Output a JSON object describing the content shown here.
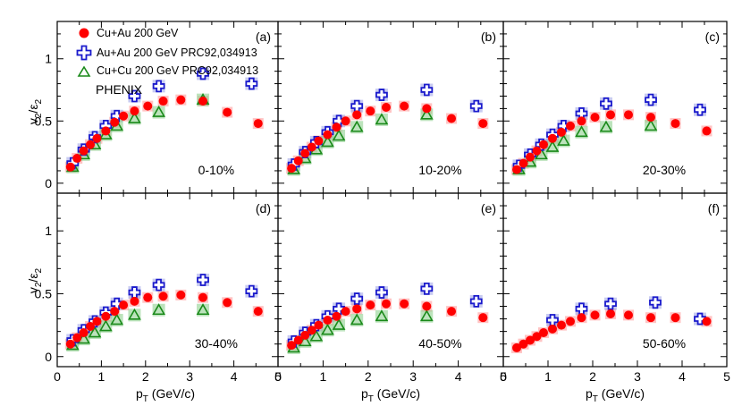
{
  "chart_data": {
    "type": "scatter",
    "title": "",
    "xlabel": "p_T (GeV/c)",
    "xlabel_main": "p",
    "xlabel_sub": "T",
    "xlabel_rest": " (GeV/c)",
    "ylabel": "v_2/ε_2",
    "ylabel_v": "v",
    "ylabel_sub1": "2",
    "ylabel_slash": "/ε",
    "ylabel_sub2": "2",
    "xlim": [
      0,
      5
    ],
    "ylim": [
      -0.08,
      1.3
    ],
    "xticks": [
      "0",
      "1",
      "2",
      "3",
      "4",
      "5"
    ],
    "yticks": [
      "0",
      "0.5",
      "1"
    ],
    "experiment_label": "PHENIX",
    "legend": [
      {
        "name": "Cu+Au 200 GeV",
        "marker": "filled-circle",
        "color": "#ff0000"
      },
      {
        "name": "Au+Au 200 GeV PRC92,034913",
        "marker": "open-cross",
        "color": "#1a1acc"
      },
      {
        "name": "Cu+Cu 200 GeV PRC92,034913",
        "marker": "open-triangle",
        "color": "#1a8a1a"
      }
    ],
    "panels": [
      {
        "letter": "(a)",
        "centrality": "0-10%",
        "series": [
          {
            "name": "Cu+Au 200 GeV",
            "x": [
              0.3,
              0.45,
              0.6,
              0.75,
              0.9,
              1.1,
              1.3,
              1.5,
              1.75,
              2.05,
              2.4,
              2.8,
              3.3,
              3.85,
              4.55
            ],
            "y": [
              0.13,
              0.2,
              0.26,
              0.31,
              0.36,
              0.42,
              0.49,
              0.54,
              0.58,
              0.62,
              0.66,
              0.67,
              0.66,
              0.57,
              0.48
            ]
          },
          {
            "name": "Au+Au 200 GeV PRC92,034913",
            "x": [
              0.35,
              0.6,
              0.85,
              1.1,
              1.35,
              1.75,
              2.3,
              3.3,
              4.4
            ],
            "y": [
              0.16,
              0.27,
              0.37,
              0.46,
              0.54,
              0.7,
              0.78,
              0.88,
              0.8
            ]
          },
          {
            "name": "Cu+Cu 200 GeV PRC92,034913",
            "x": [
              0.35,
              0.6,
              0.85,
              1.1,
              1.35,
              1.75,
              2.3,
              3.3
            ],
            "y": [
              0.13,
              0.23,
              0.31,
              0.39,
              0.46,
              0.52,
              0.57,
              0.67
            ]
          }
        ]
      },
      {
        "letter": "(b)",
        "centrality": "10-20%",
        "series": [
          {
            "name": "Cu+Au 200 GeV",
            "x": [
              0.3,
              0.45,
              0.6,
              0.75,
              0.9,
              1.1,
              1.3,
              1.5,
              1.75,
              2.05,
              2.4,
              2.8,
              3.3,
              3.85,
              4.55
            ],
            "y": [
              0.12,
              0.18,
              0.24,
              0.29,
              0.34,
              0.39,
              0.45,
              0.5,
              0.55,
              0.58,
              0.61,
              0.62,
              0.6,
              0.52,
              0.48
            ]
          },
          {
            "name": "Au+Au 200 GeV PRC92,034913",
            "x": [
              0.35,
              0.6,
              0.85,
              1.1,
              1.35,
              1.75,
              2.3,
              3.3,
              4.4
            ],
            "y": [
              0.15,
              0.25,
              0.33,
              0.41,
              0.5,
              0.62,
              0.71,
              0.75,
              0.62
            ]
          },
          {
            "name": "Cu+Cu 200 GeV PRC92,034913",
            "x": [
              0.35,
              0.6,
              0.85,
              1.1,
              1.35,
              1.75,
              2.3,
              3.3
            ],
            "y": [
              0.11,
              0.2,
              0.27,
              0.33,
              0.38,
              0.45,
              0.51,
              0.55
            ]
          }
        ]
      },
      {
        "letter": "(c)",
        "centrality": "20-30%",
        "series": [
          {
            "name": "Cu+Au 200 GeV",
            "x": [
              0.3,
              0.45,
              0.6,
              0.75,
              0.9,
              1.1,
              1.3,
              1.5,
              1.75,
              2.05,
              2.4,
              2.8,
              3.3,
              3.85,
              4.55
            ],
            "y": [
              0.11,
              0.16,
              0.21,
              0.26,
              0.31,
              0.36,
              0.41,
              0.46,
              0.5,
              0.53,
              0.55,
              0.55,
              0.53,
              0.48,
              0.42
            ]
          },
          {
            "name": "Au+Au 200 GeV PRC92,034913",
            "x": [
              0.35,
              0.6,
              0.85,
              1.1,
              1.35,
              1.75,
              2.3,
              3.3,
              4.4
            ],
            "y": [
              0.14,
              0.23,
              0.31,
              0.39,
              0.46,
              0.56,
              0.64,
              0.67,
              0.59
            ]
          },
          {
            "name": "Cu+Cu 200 GeV PRC92,034913",
            "x": [
              0.35,
              0.6,
              0.85,
              1.1,
              1.35,
              1.75,
              2.3,
              3.3
            ],
            "y": [
              0.11,
              0.17,
              0.23,
              0.29,
              0.34,
              0.41,
              0.45,
              0.46
            ]
          }
        ]
      },
      {
        "letter": "(d)",
        "centrality": "30-40%",
        "series": [
          {
            "name": "Cu+Au 200 GeV",
            "x": [
              0.3,
              0.45,
              0.6,
              0.75,
              0.9,
              1.1,
              1.3,
              1.5,
              1.75,
              2.05,
              2.4,
              2.8,
              3.3,
              3.85,
              4.55
            ],
            "y": [
              0.1,
              0.15,
              0.19,
              0.24,
              0.28,
              0.32,
              0.36,
              0.41,
              0.44,
              0.47,
              0.48,
              0.49,
              0.47,
              0.43,
              0.36
            ]
          },
          {
            "name": "Au+Au 200 GeV PRC92,034913",
            "x": [
              0.35,
              0.6,
              0.85,
              1.1,
              1.35,
              1.75,
              2.3,
              3.3,
              4.4
            ],
            "y": [
              0.13,
              0.21,
              0.28,
              0.35,
              0.42,
              0.51,
              0.57,
              0.61,
              0.52
            ]
          },
          {
            "name": "Cu+Cu 200 GeV PRC92,034913",
            "x": [
              0.35,
              0.6,
              0.85,
              1.1,
              1.35,
              1.75,
              2.3,
              3.3
            ],
            "y": [
              0.09,
              0.14,
              0.19,
              0.24,
              0.29,
              0.33,
              0.37,
              0.37
            ]
          }
        ]
      },
      {
        "letter": "(e)",
        "centrality": "40-50%",
        "series": [
          {
            "name": "Cu+Au 200 GeV",
            "x": [
              0.3,
              0.45,
              0.6,
              0.75,
              0.9,
              1.1,
              1.3,
              1.5,
              1.75,
              2.05,
              2.4,
              2.8,
              3.3,
              3.85,
              4.55
            ],
            "y": [
              0.09,
              0.13,
              0.17,
              0.21,
              0.25,
              0.29,
              0.32,
              0.36,
              0.38,
              0.41,
              0.42,
              0.42,
              0.4,
              0.36,
              0.31
            ]
          },
          {
            "name": "Au+Au 200 GeV PRC92,034913",
            "x": [
              0.35,
              0.6,
              0.85,
              1.1,
              1.35,
              1.75,
              2.3,
              3.3,
              4.4
            ],
            "y": [
              0.12,
              0.19,
              0.25,
              0.32,
              0.38,
              0.46,
              0.51,
              0.54,
              0.44
            ]
          },
          {
            "name": "Cu+Cu 200 GeV PRC92,034913",
            "x": [
              0.35,
              0.6,
              0.85,
              1.1,
              1.35,
              1.75,
              2.3,
              3.3
            ],
            "y": [
              0.07,
              0.12,
              0.16,
              0.21,
              0.25,
              0.29,
              0.32,
              0.32
            ]
          }
        ]
      },
      {
        "letter": "(f)",
        "centrality": "50-60%",
        "series": [
          {
            "name": "Cu+Au 200 GeV",
            "x": [
              0.3,
              0.45,
              0.6,
              0.75,
              0.9,
              1.1,
              1.3,
              1.5,
              1.75,
              2.05,
              2.4,
              2.8,
              3.3,
              3.85,
              4.55
            ],
            "y": [
              0.07,
              0.1,
              0.13,
              0.16,
              0.19,
              0.22,
              0.25,
              0.28,
              0.31,
              0.33,
              0.34,
              0.33,
              0.31,
              0.31,
              0.28
            ]
          },
          {
            "name": "Au+Au 200 GeV PRC92,034913",
            "x": [
              1.1,
              1.75,
              2.4,
              3.4,
              4.4
            ],
            "y": [
              0.29,
              0.38,
              0.42,
              0.43,
              0.3
            ]
          },
          {
            "name": "Cu+Cu 200 GeV PRC92,034913",
            "x": [],
            "y": []
          }
        ]
      }
    ]
  }
}
